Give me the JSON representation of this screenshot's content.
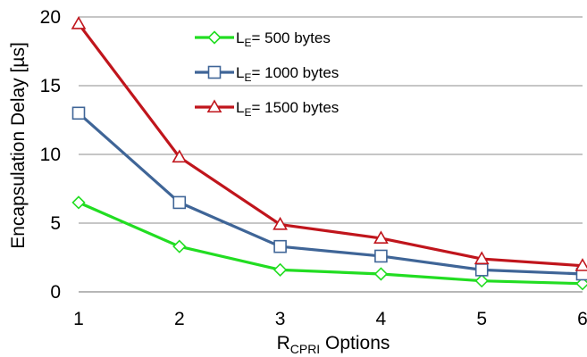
{
  "chart_data": {
    "type": "line",
    "x": [
      1,
      2,
      3,
      4,
      5,
      6
    ],
    "xlim": [
      1,
      6
    ],
    "ylim": [
      0,
      20
    ],
    "xticks": [
      "1",
      "2",
      "3",
      "4",
      "5",
      "6"
    ],
    "yticks": [
      "0",
      "5",
      "10",
      "15",
      "20"
    ],
    "xlabel": {
      "main": "R",
      "sub": "CPRI",
      "rest": " Options"
    },
    "ylabel": "Encapsulation Delay [µs]",
    "grid": "horizontal",
    "legend_position": "top-center",
    "series": [
      {
        "name": {
          "main": "L",
          "sub": "E",
          "rest": "=  500 bytes"
        },
        "values": [
          6.5,
          3.3,
          1.6,
          1.3,
          0.8,
          0.6
        ],
        "color": "#22dd22",
        "marker": "diamond"
      },
      {
        "name": {
          "main": "L",
          "sub": "E",
          "rest": "= 1000 bytes"
        },
        "values": [
          13.0,
          6.5,
          3.3,
          2.6,
          1.6,
          1.3
        ],
        "color": "#3f6597",
        "marker": "square"
      },
      {
        "name": {
          "main": "L",
          "sub": "E",
          "rest": "= 1500 bytes"
        },
        "values": [
          19.5,
          9.8,
          4.9,
          3.9,
          2.4,
          1.9
        ],
        "color": "#c0151c",
        "marker": "triangle"
      }
    ]
  }
}
